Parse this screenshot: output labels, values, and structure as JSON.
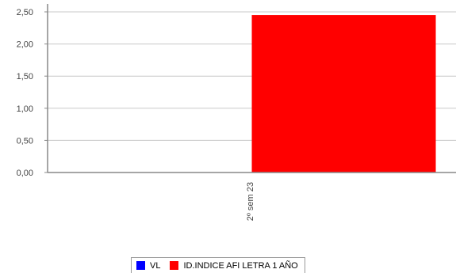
{
  "chart_data": {
    "type": "bar",
    "categories": [
      "2º sem 23"
    ],
    "series": [
      {
        "name": "VL",
        "values": [
          0
        ],
        "color": "#0000ff"
      },
      {
        "name": "ID.INDICE AFI LETRA 1 AÑO",
        "values": [
          2.45
        ],
        "color": "#ff0000"
      }
    ],
    "ylim": [
      0,
      2.5
    ],
    "yticks": [
      "0,00",
      "0,50",
      "1,00",
      "1,50",
      "2,00",
      "2,50"
    ],
    "grid": true,
    "legend_position": "bottom"
  }
}
